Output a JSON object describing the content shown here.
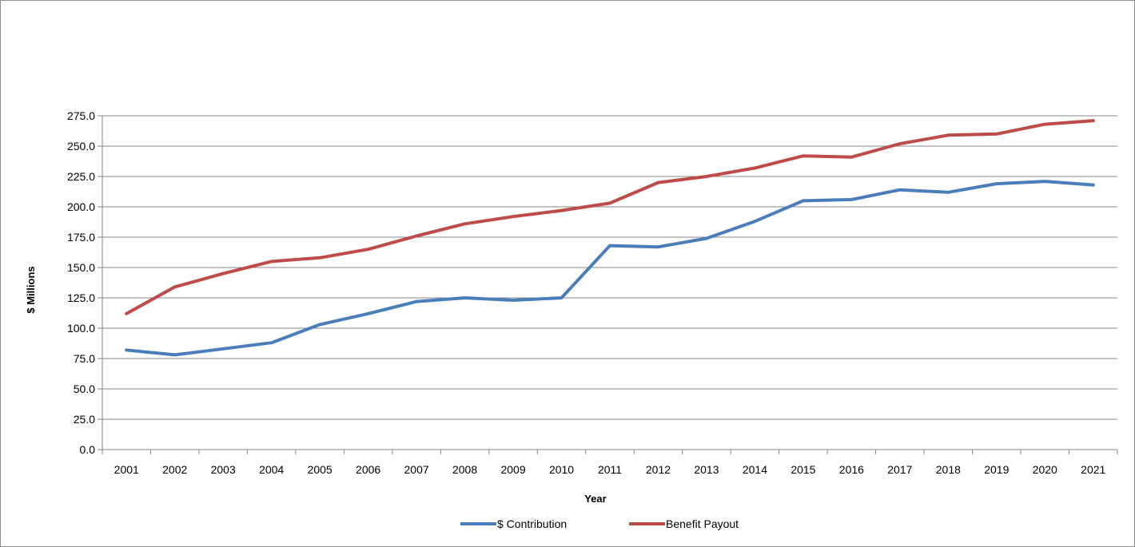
{
  "chart_data": {
    "type": "line",
    "title": "",
    "xlabel": "Year",
    "ylabel": "$ Millions",
    "ylim": [
      0,
      275
    ],
    "ytick_step": 25,
    "ytick_labels": [
      "0.0",
      "25.0",
      "50.0",
      "75.0",
      "100.0",
      "125.0",
      "150.0",
      "175.0",
      "200.0",
      "225.0",
      "250.0",
      "275.0"
    ],
    "grid": "horizontal",
    "legend_position": "bottom",
    "categories": [
      "2001",
      "2002",
      "2003",
      "2004",
      "2005",
      "2006",
      "2007",
      "2008",
      "2009",
      "2010",
      "2011",
      "2012",
      "2013",
      "2014",
      "2015",
      "2016",
      "2017",
      "2018",
      "2019",
      "2020",
      "2021"
    ],
    "series": [
      {
        "name": "$ Contribution",
        "color": "#4a7ebb",
        "values": [
          82,
          78,
          83,
          88,
          103,
          112,
          122,
          125,
          123,
          125,
          168,
          167,
          174,
          188,
          205,
          206,
          214,
          212,
          219,
          221,
          218
        ]
      },
      {
        "name": "Benefit Payout",
        "color": "#be4b48",
        "values": [
          112,
          134,
          145,
          155,
          158,
          165,
          176,
          186,
          192,
          197,
          203,
          220,
          225,
          232,
          242,
          241,
          252,
          259,
          260,
          268,
          271
        ]
      }
    ]
  }
}
